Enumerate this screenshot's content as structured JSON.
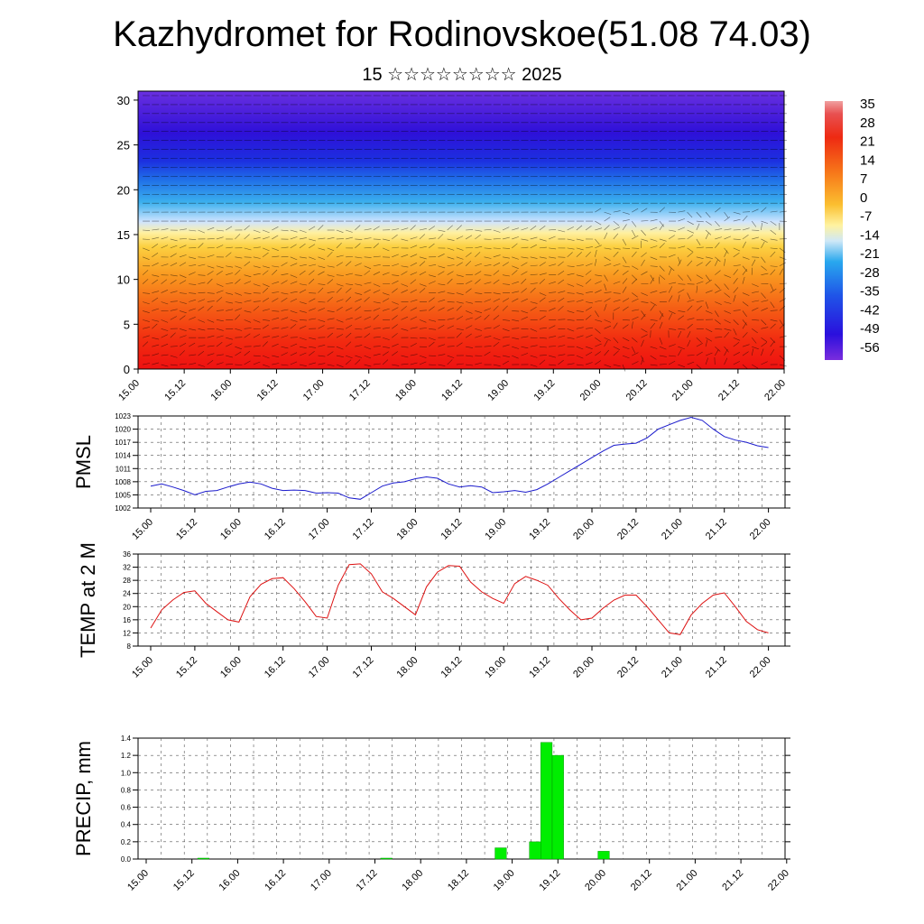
{
  "title": "Kazhydromet for Rodinovskoe(51.08 74.03)",
  "subtitle": "15 ☆☆☆☆☆☆☆☆ 2025",
  "time_labels": [
    "15.00",
    "15.12",
    "16.00",
    "16.12",
    "17.00",
    "17.12",
    "18.00",
    "18.12",
    "19.00",
    "19.12",
    "20.00",
    "20.12",
    "21.00",
    "21.12",
    "22.00"
  ],
  "colors": {
    "pmsl": "#1a1acc",
    "temp": "#dd1111",
    "precip": "#00ee00"
  },
  "chart_data": [
    {
      "type": "heatmap",
      "ylim": [
        0,
        31
      ],
      "yticks": [
        0,
        5,
        10,
        15,
        20,
        25,
        30
      ],
      "colorbar": {
        "labels": [
          "35",
          "28",
          "21",
          "14",
          "7",
          "0",
          "-7",
          "-14",
          "-21",
          "-28",
          "-35",
          "-42",
          "-49",
          "-56"
        ]
      },
      "description_field": "temperature by level with wind barbs"
    },
    {
      "type": "line",
      "ylabel": "PMSL",
      "ylim": [
        1002,
        1023
      ],
      "yticks": [
        "1002",
        "1005",
        "1008",
        "1011",
        "1014",
        "1017",
        "1020",
        "1023"
      ],
      "x": [
        0,
        0.125,
        0.25,
        0.375,
        0.5,
        0.625,
        0.75,
        0.875,
        1,
        1.125,
        1.25,
        1.375,
        1.5,
        1.625,
        1.75,
        1.875,
        2,
        2.125,
        2.25,
        2.375,
        2.5,
        2.625,
        2.75,
        2.875,
        3,
        3.125,
        3.25,
        3.375,
        3.5,
        3.625,
        3.75,
        3.875,
        4,
        4.125,
        4.25,
        4.375,
        4.5,
        4.625,
        4.75,
        4.875,
        5,
        5.125,
        5.25,
        5.375,
        5.5,
        5.625,
        5.75,
        5.875,
        6,
        6.125,
        6.25,
        6.375,
        6.5,
        6.625,
        6.75,
        6.875,
        7
      ],
      "values": [
        1007,
        1007.5,
        1006.8,
        1006,
        1005,
        1005.8,
        1006,
        1006.8,
        1007.5,
        1007.9,
        1007.5,
        1006.5,
        1006,
        1006.1,
        1006,
        1005.4,
        1005.5,
        1005.4,
        1004.3,
        1004,
        1005.5,
        1007,
        1007.7,
        1008,
        1008.7,
        1009.1,
        1008.8,
        1007.5,
        1006.8,
        1007.1,
        1006.8,
        1005.5,
        1005.7,
        1006,
        1005.6,
        1006.2,
        1007.5,
        1009,
        1010.5,
        1012,
        1013.5,
        1015,
        1016.3,
        1016.6,
        1016.8,
        1018,
        1020,
        1021,
        1022,
        1022.7,
        1022,
        1020,
        1018.3,
        1017.5,
        1017,
        1016.2,
        1015.8
      ]
    },
    {
      "type": "line",
      "ylabel": "TEMP at 2 M",
      "ylim": [
        8,
        36
      ],
      "yticks": [
        "8",
        "12",
        "16",
        "20",
        "24",
        "28",
        "32",
        "36"
      ],
      "x": [
        0,
        0.125,
        0.25,
        0.375,
        0.5,
        0.625,
        0.75,
        0.875,
        1,
        1.125,
        1.25,
        1.375,
        1.5,
        1.625,
        1.75,
        1.875,
        2,
        2.125,
        2.25,
        2.375,
        2.5,
        2.625,
        2.75,
        2.875,
        3,
        3.125,
        3.25,
        3.375,
        3.5,
        3.625,
        3.75,
        3.875,
        4,
        4.125,
        4.25,
        4.375,
        4.5,
        4.625,
        4.75,
        4.875,
        5,
        5.125,
        5.25,
        5.375,
        5.5,
        5.625,
        5.75,
        5.875,
        6,
        6.125,
        6.25,
        6.375,
        6.5,
        6.625,
        6.75,
        6.875,
        7
      ],
      "values": [
        13.5,
        19,
        22,
        24.3,
        24.8,
        21,
        18.5,
        16,
        15.3,
        23,
        26.8,
        28.5,
        28.8,
        25.5,
        21.5,
        17,
        16.5,
        26.5,
        32.8,
        33,
        30,
        24.5,
        22.5,
        20,
        17.5,
        26,
        30.5,
        32.5,
        32.3,
        27.5,
        24.5,
        22.5,
        21,
        27,
        29.2,
        28,
        26.5,
        22.5,
        19,
        16,
        16.5,
        19.5,
        22,
        23.5,
        23.5,
        20,
        16,
        12,
        11.5,
        17.5,
        21,
        23.5,
        24.2,
        20,
        15.5,
        13,
        12
      ]
    },
    {
      "type": "bar",
      "ylabel": "PRECIP, mm",
      "ylim": [
        0,
        1.4
      ],
      "yticks": [
        "0.0",
        "0.2",
        "0.4",
        "0.6",
        "0.8",
        "1.0",
        "1.2",
        "1.4"
      ],
      "x": [
        0.625,
        2.625,
        3.875,
        4.25,
        4.375,
        4.5,
        5.0
      ],
      "values": [
        0.01,
        0.01,
        0.13,
        0.2,
        1.35,
        1.2,
        0.09
      ]
    }
  ]
}
